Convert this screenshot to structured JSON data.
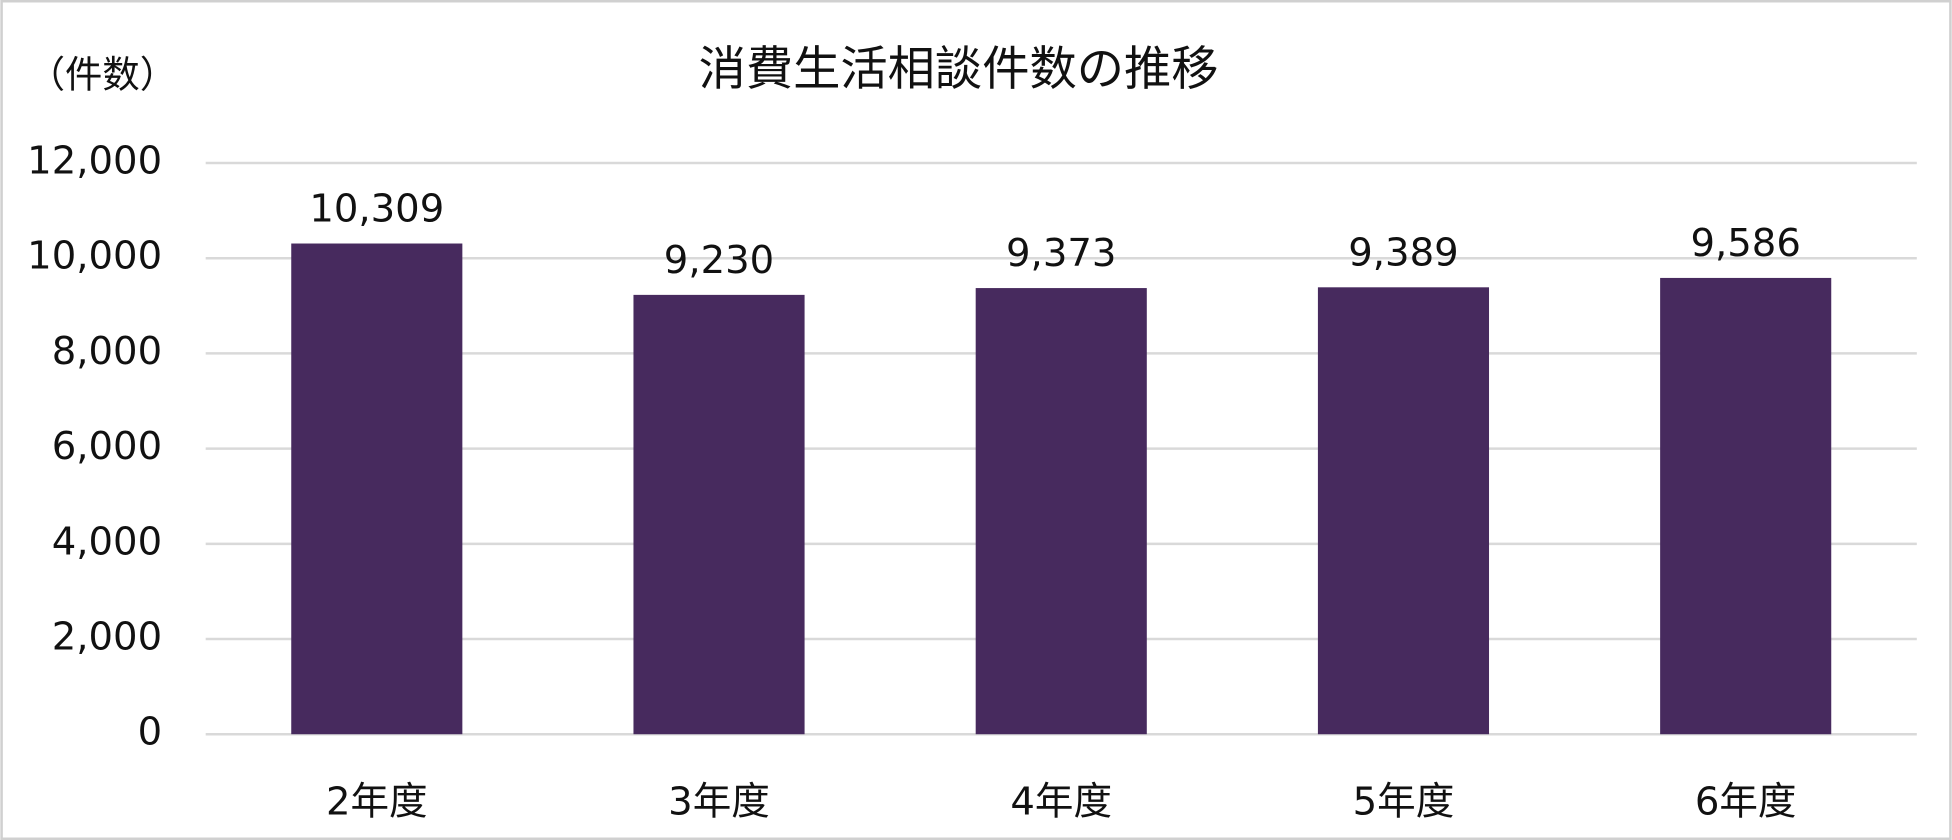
{
  "chart_data": {
    "type": "bar",
    "title": "消費生活相談件数の推移",
    "y_label": "（件数）",
    "categories": [
      "2年度",
      "3年度",
      "4年度",
      "5年度",
      "6年度"
    ],
    "values": [
      10309,
      9230,
      9373,
      9389,
      9586
    ],
    "value_labels": [
      "10,309",
      "9,230",
      "9,373",
      "9,389",
      "9,586"
    ],
    "color": "#472a5e",
    "ylim": [
      0,
      12000
    ],
    "yticks": [
      0,
      {
        "value": 2000,
        "label": "2,000"
      },
      {
        "value": 4000,
        "label": "4,000"
      },
      {
        "value": 6000,
        "label": "6,000"
      },
      {
        "value": 8000,
        "label": "8,000"
      },
      {
        "value": 10000,
        "label": "10,000"
      },
      {
        "value": 12000,
        "label": "12,000"
      }
    ],
    "grid": true
  }
}
